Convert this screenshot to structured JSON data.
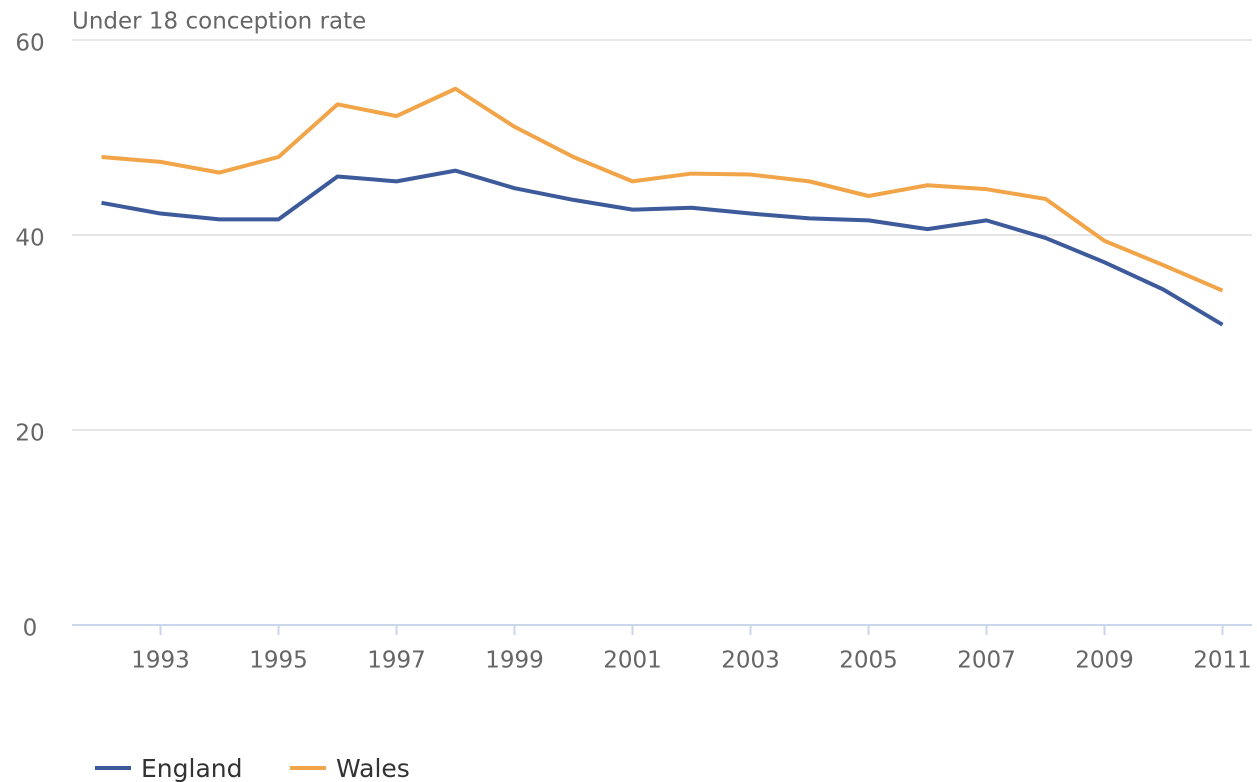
{
  "chart_data": {
    "type": "line",
    "title": "Under 18 conception rate",
    "x": [
      1992,
      1993,
      1994,
      1995,
      1996,
      1997,
      1998,
      1999,
      2000,
      2001,
      2002,
      2003,
      2004,
      2005,
      2006,
      2007,
      2008,
      2009,
      2010,
      2011
    ],
    "series": [
      {
        "name": "England",
        "color": "#3d5a9b",
        "values": [
          43.3,
          42.2,
          41.6,
          41.6,
          46.0,
          45.5,
          46.6,
          44.8,
          43.6,
          42.6,
          42.8,
          42.2,
          41.7,
          41.5,
          40.6,
          41.5,
          39.7,
          37.2,
          34.4,
          30.8
        ]
      },
      {
        "name": "Wales",
        "color": "#f2a448",
        "values": [
          48.0,
          47.5,
          46.4,
          48.0,
          53.4,
          52.2,
          55.0,
          51.1,
          48.0,
          45.5,
          46.3,
          46.2,
          45.5,
          44.0,
          45.1,
          44.7,
          43.7,
          39.4,
          36.9,
          34.3
        ]
      }
    ],
    "xlim": [
      1991.5,
      2011.5
    ],
    "xticks": [
      1993,
      1995,
      1997,
      1999,
      2001,
      2003,
      2005,
      2007,
      2009,
      2011
    ],
    "ylim": [
      0,
      60
    ],
    "yticks": [
      0,
      20,
      40,
      60
    ],
    "grid": true,
    "legend": "bottom-left"
  }
}
